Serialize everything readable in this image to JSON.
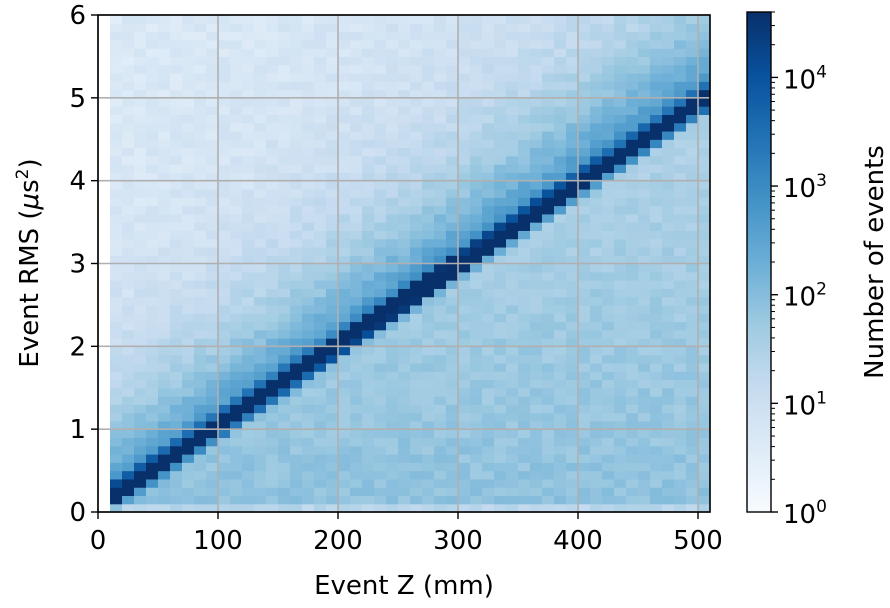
{
  "chart_data": {
    "type": "heatmap",
    "title": "",
    "xlabel": "Event Z (mm)",
    "ylabel_main": "Event RMS (",
    "ylabel_mu": "μ",
    "ylabel_s": "s",
    "ylabel_sup": "2",
    "ylabel_close": ")",
    "xlim": [
      0,
      510
    ],
    "ylim": [
      0,
      6
    ],
    "x_ticks": [
      "0",
      "100",
      "200",
      "300",
      "400",
      "500"
    ],
    "x_tick_values": [
      0,
      100,
      200,
      300,
      400,
      500
    ],
    "y_ticks": [
      "0",
      "1",
      "2",
      "3",
      "4",
      "5",
      "6"
    ],
    "y_tick_values": [
      0,
      1,
      2,
      3,
      4,
      5,
      6
    ],
    "grid": true,
    "bins": {
      "x_start": 10,
      "x_end": 510,
      "x_count": 50,
      "y_start": 0,
      "y_end": 6,
      "y_count": 60
    },
    "ridge": {
      "z_at_start": 10,
      "rms_at_start": 0.15,
      "z_at_end": 510,
      "rms_at_end": 5.0
    },
    "colorbar": {
      "label": "Number of events",
      "scale": "log",
      "min": 1,
      "max": 40000,
      "ticks": [
        {
          "base": "10",
          "exp": "0",
          "value": 1
        },
        {
          "base": "10",
          "exp": "1",
          "value": 10
        },
        {
          "base": "10",
          "exp": "2",
          "value": 100
        },
        {
          "base": "10",
          "exp": "3",
          "value": 1000
        },
        {
          "base": "10",
          "exp": "4",
          "value": 10000
        }
      ]
    },
    "colormap": [
      "#f7fbff",
      "#deebf7",
      "#c6dbef",
      "#9ecae1",
      "#6baed6",
      "#4292c6",
      "#2171b5",
      "#08519c",
      "#08306b"
    ]
  }
}
